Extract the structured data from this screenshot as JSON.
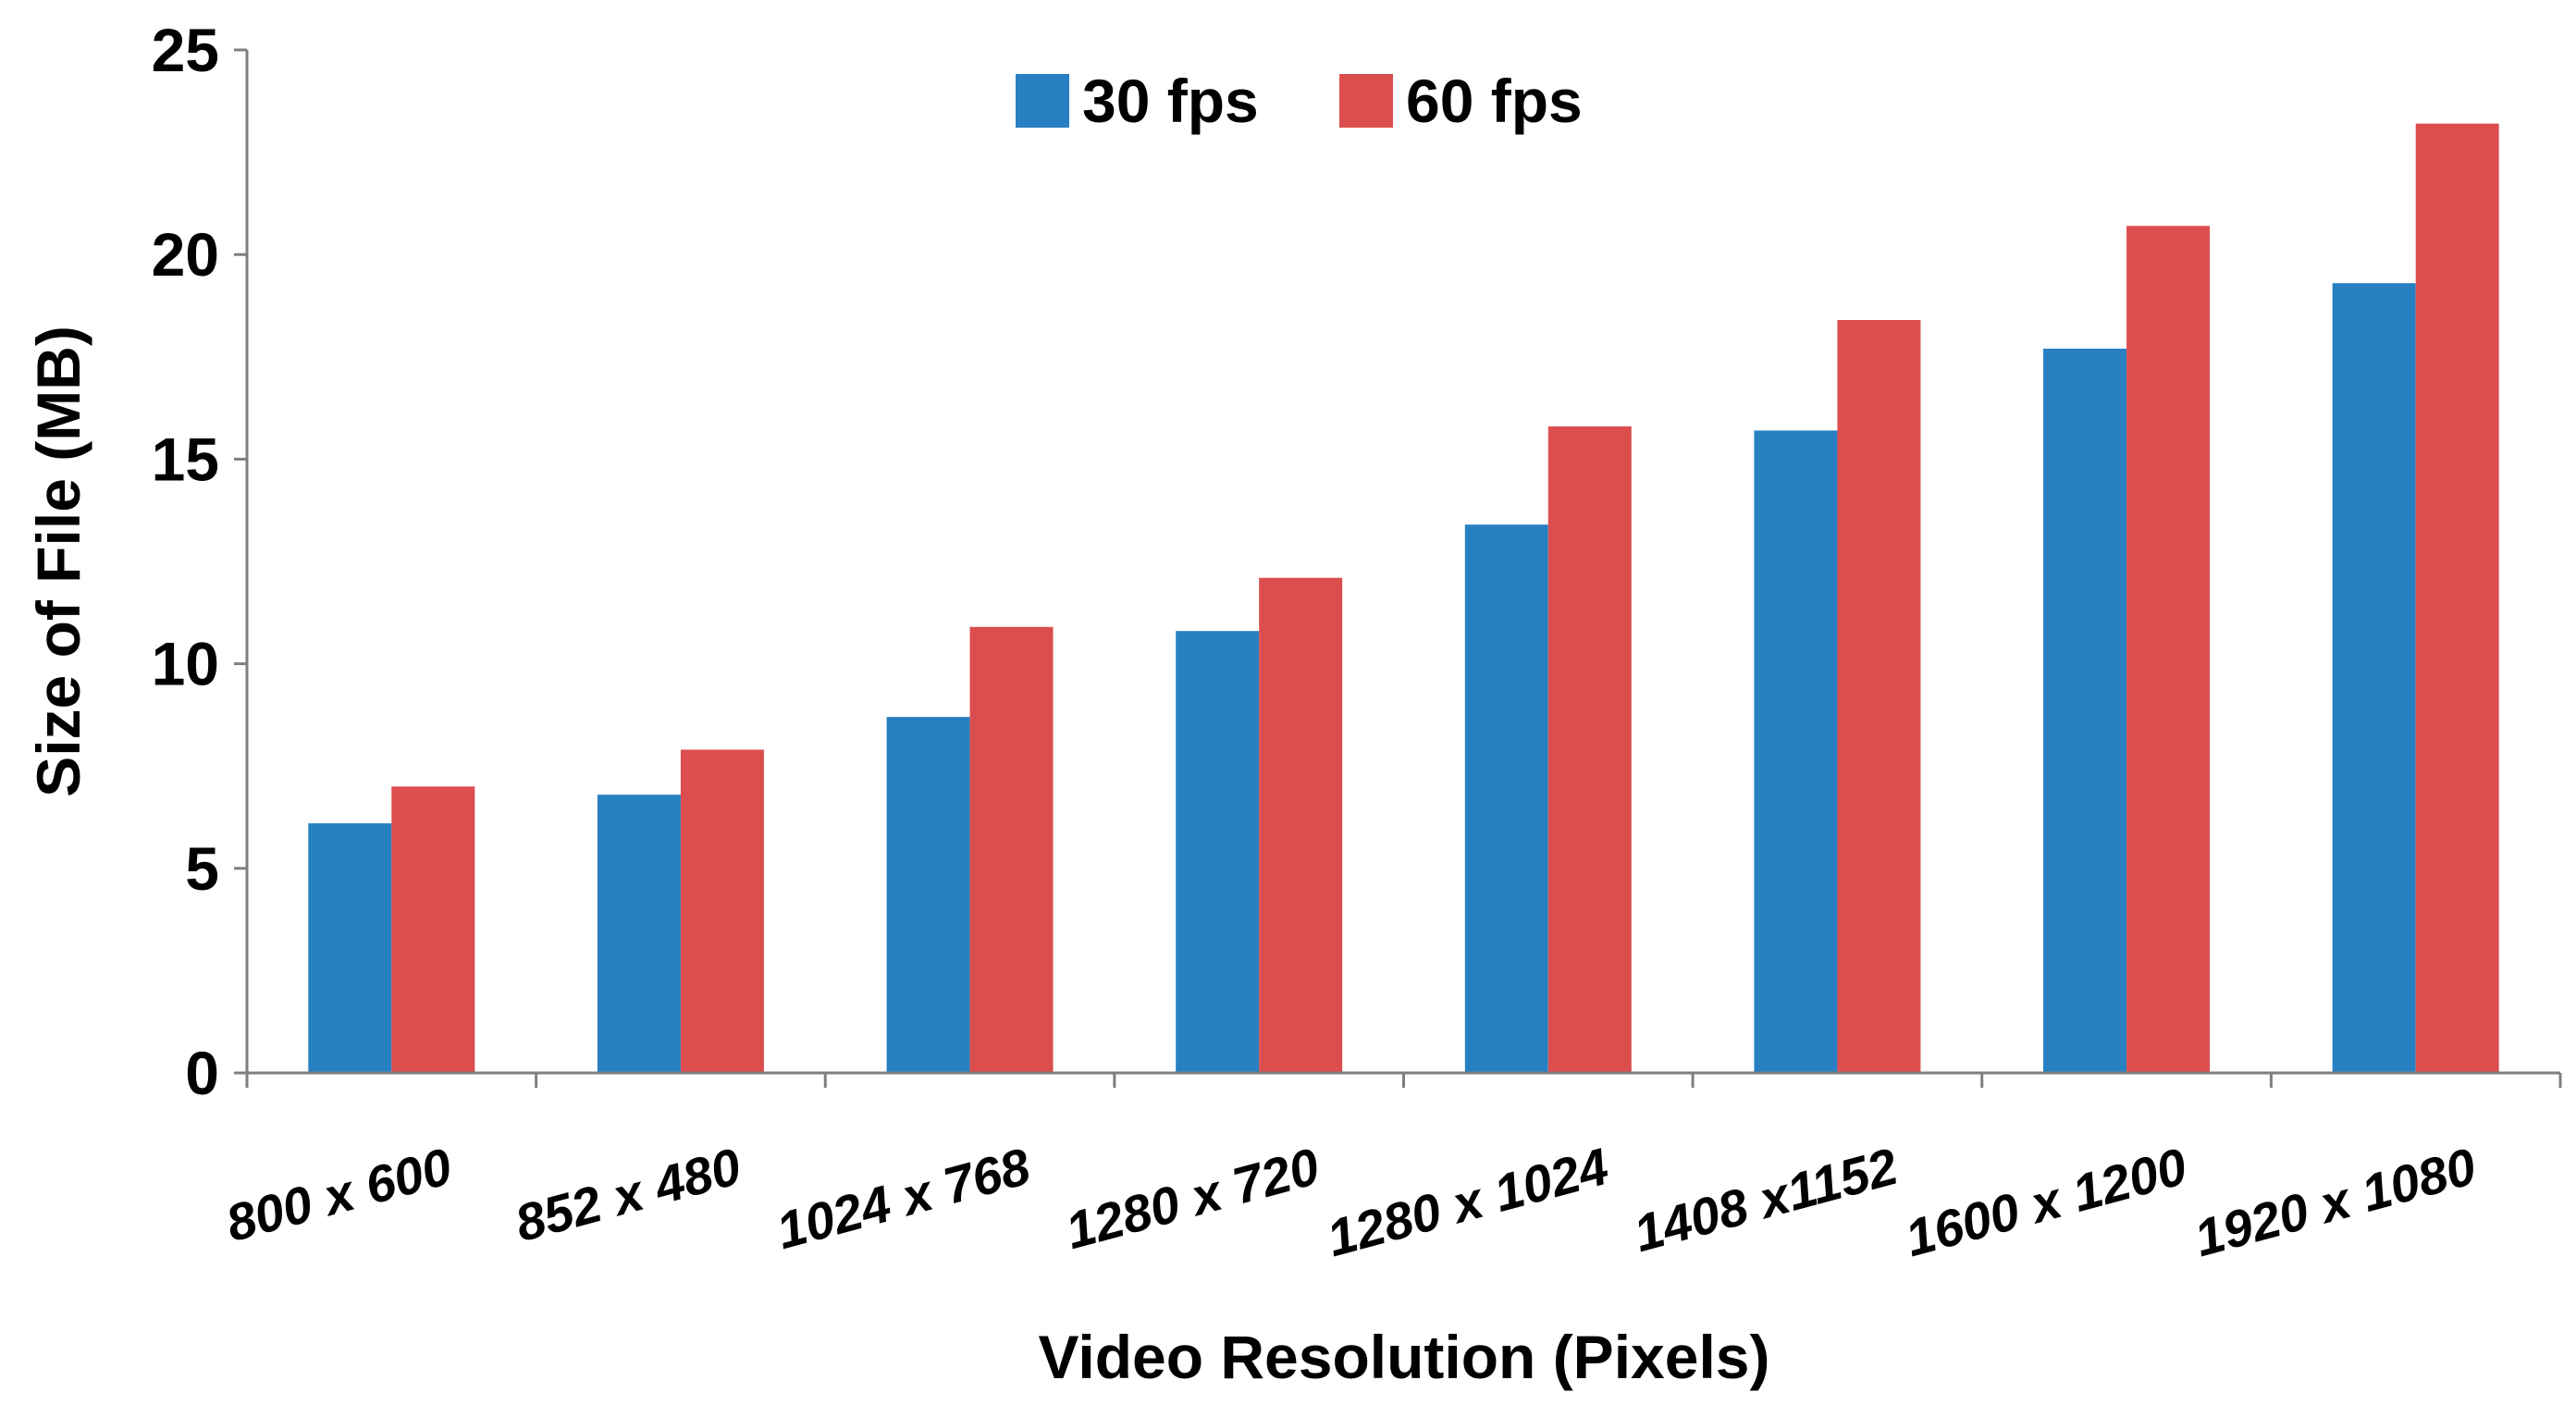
{
  "chart_data": {
    "type": "bar",
    "categories": [
      "800 x 600",
      "852 x 480",
      "1024 x 768",
      "1280 x 720",
      "1280 x 1024",
      "1408 x1152",
      "1600 x 1200",
      "1920 x 1080"
    ],
    "series": [
      {
        "name": "30 fps",
        "color": "#2880c2",
        "values": [
          6.1,
          6.8,
          8.7,
          10.8,
          13.4,
          15.7,
          17.7,
          19.3
        ]
      },
      {
        "name": "60 fps",
        "color": "#dc4e4e",
        "values": [
          7.0,
          7.9,
          10.9,
          12.1,
          15.8,
          18.4,
          20.7,
          23.2
        ]
      }
    ],
    "title": "",
    "xlabel": "Video Resolution (Pixels)",
    "ylabel": "Size of File (MB)",
    "ylim": [
      0,
      25
    ],
    "yticks": [
      "0",
      "5",
      "10",
      "15",
      "20",
      "25"
    ],
    "grid": false,
    "legend_position": "top-center"
  }
}
